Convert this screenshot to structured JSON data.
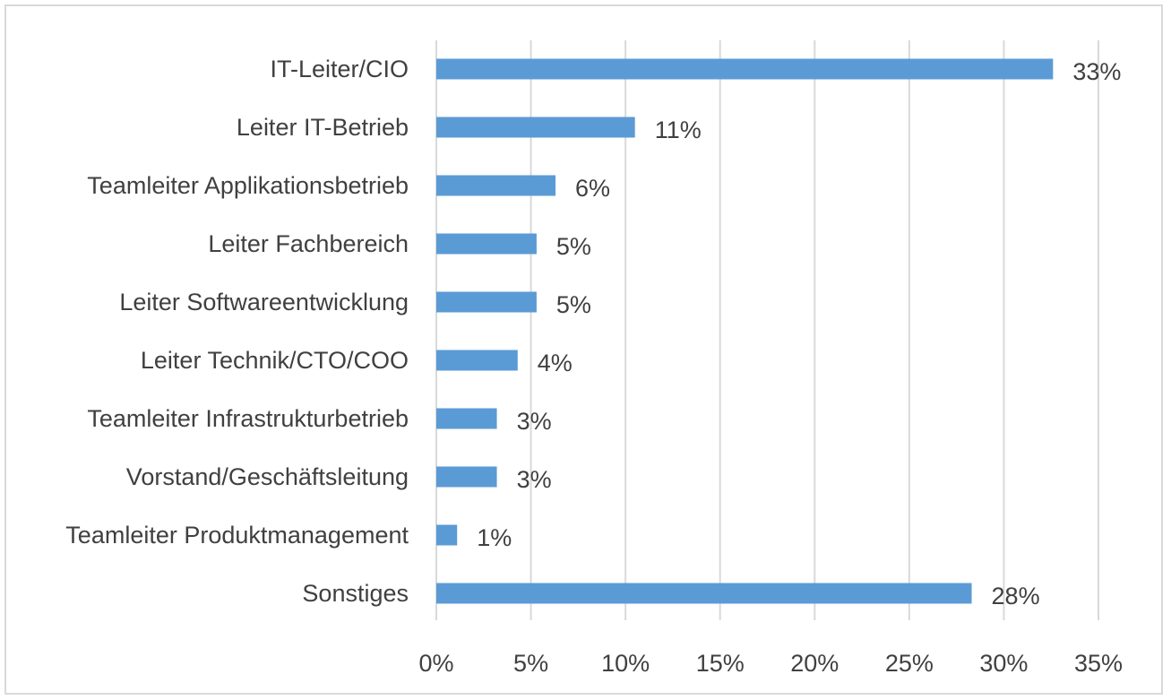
{
  "chart_data": {
    "type": "bar",
    "orientation": "horizontal",
    "categories": [
      "IT-Leiter/CIO",
      "Leiter IT-Betrieb",
      "Teamleiter Applikationsbetrieb",
      "Leiter Fachbereich",
      "Leiter Softwareentwicklung",
      "Leiter Technik/CTO/COO",
      "Teamleiter Infrastrukturbetrieb",
      "Vorstand/Geschäftsleitung",
      "Teamleiter Produktmanagement",
      "Sonstiges"
    ],
    "values": [
      32.6,
      10.5,
      6.3,
      5.3,
      5.3,
      4.3,
      3.2,
      3.2,
      1.1,
      28.3
    ],
    "data_labels": [
      "33%",
      "11%",
      "6%",
      "5%",
      "5%",
      "4%",
      "3%",
      "3%",
      "1%",
      "28%"
    ],
    "xlim": [
      0,
      35
    ],
    "x_ticks": [
      0,
      5,
      10,
      15,
      20,
      25,
      30,
      35
    ],
    "x_tick_labels": [
      "0%",
      "5%",
      "10%",
      "15%",
      "20%",
      "25%",
      "30%",
      "35%"
    ],
    "grid": "vertical",
    "legend": "none",
    "bar_color": "#5b9bd5",
    "grid_color": "#d9d9d9",
    "text_color": "#404040",
    "title": "",
    "xlabel": "",
    "ylabel": ""
  }
}
